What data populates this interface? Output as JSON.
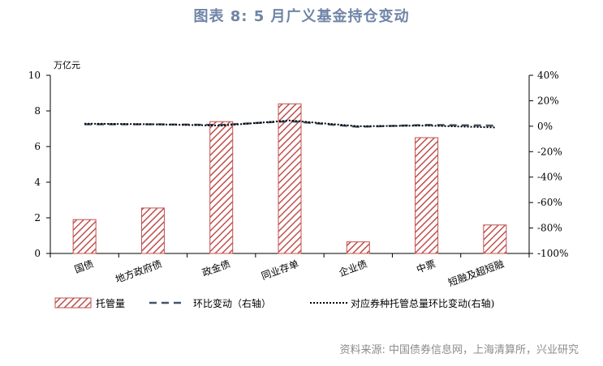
{
  "title": "图表 8:  5 月广义基金持仓变动",
  "source": "资料来源:  中国债券信息网，上海清算所，兴业研究",
  "chart_data": {
    "type": "bar",
    "y_unit_label": "万亿元",
    "categories": [
      "国债",
      "地方政府债",
      "政金债",
      "同业存单",
      "企业债",
      "中票",
      "短融及超短融"
    ],
    "ylim_left": [
      0,
      10
    ],
    "yticks_left": [
      0,
      2,
      4,
      6,
      8,
      10
    ],
    "ylim_right": [
      -100,
      40
    ],
    "yticks_right": [
      -100,
      -80,
      -60,
      -40,
      -20,
      0,
      20,
      40
    ],
    "yticks_right_labels": [
      "-100%",
      "-80%",
      "-60%",
      "-40%",
      "-20%",
      "0%",
      "20%",
      "40%"
    ],
    "series": [
      {
        "name": "托管量",
        "type": "bar",
        "axis": "left",
        "pattern": "diagonal-hatch",
        "color": "#c0504d",
        "values": [
          1.9,
          2.55,
          7.4,
          8.4,
          0.65,
          6.5,
          1.6
        ]
      },
      {
        "name": "环比变动（右轴）",
        "type": "line",
        "axis": "right",
        "style": "dashed",
        "color": "#44546a",
        "values": [
          1.5,
          1.5,
          1.0,
          4.0,
          -0.5,
          1.0,
          0.5
        ]
      },
      {
        "name": "对应券种托管总量环比变动(右轴)",
        "type": "line",
        "axis": "right",
        "style": "dotted",
        "color": "#000000",
        "values": [
          2.0,
          1.5,
          0.5,
          4.5,
          0.0,
          0.5,
          -1.0
        ]
      }
    ],
    "legend_position": "bottom",
    "grid": false
  }
}
